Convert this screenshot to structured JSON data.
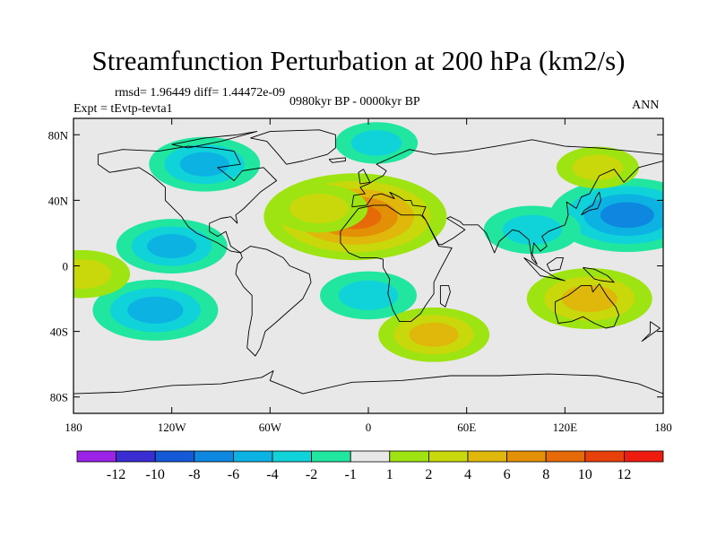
{
  "title": "Streamfunction Perturbation at 200 hPa (km2/s)",
  "rmsd_line": "rmsd= 1.96449 diff= 1.44472e-09",
  "period": "0980kyr BP - 0000kyr BP",
  "experiment": "Expt = tEvtp-tevta1",
  "season": "ANN",
  "lat_ticks": [
    "80N",
    "40N",
    "0",
    "40S",
    "80S"
  ],
  "lon_ticks": [
    "180",
    "120W",
    "60W",
    "0",
    "60E",
    "120E",
    "180"
  ],
  "colorbar": {
    "labels": [
      "-12",
      "-10",
      "-8",
      "-6",
      "-4",
      "-2",
      "-1",
      "1",
      "2",
      "4",
      "6",
      "8",
      "10",
      "12"
    ],
    "colors": [
      "#9b22e6",
      "#3a2dd2",
      "#1459d6",
      "#0d87e0",
      "#0cb2e2",
      "#10d3d9",
      "#20e6a0",
      "#e8e8e8",
      "#9ee312",
      "#c8d80a",
      "#e0b80b",
      "#e49006",
      "#e66a08",
      "#e8400a",
      "#ee1c0e"
    ]
  },
  "chart_data": {
    "type": "heatmap",
    "title": "Streamfunction Perturbation at 200 hPa (km2/s)",
    "variable": "Streamfunction Perturbation at 200 hPa",
    "units": "km2/s",
    "x_range": [
      -180,
      180
    ],
    "y_range": [
      -90,
      90
    ],
    "levels": [
      -12,
      -10,
      -8,
      -6,
      -4,
      -2,
      -1,
      1,
      2,
      4,
      6,
      8,
      10,
      12
    ],
    "features": [
      {
        "name": "north-africa-max",
        "lon": -8,
        "lat": 30,
        "value": 9
      },
      {
        "name": "atlantic-positive-band",
        "lon": -30,
        "lat": 35,
        "value": 3
      },
      {
        "name": "west-pacific-min",
        "lon": 158,
        "lat": 31,
        "value": -7
      },
      {
        "name": "asia-negative-band",
        "lon": 100,
        "lat": 22,
        "value": -3
      },
      {
        "name": "north-america-min",
        "lon": -100,
        "lat": 62,
        "value": -4
      },
      {
        "name": "east-pacific-negative",
        "lon": -120,
        "lat": 12,
        "value": -4
      },
      {
        "name": "south-pacific-min",
        "lon": -130,
        "lat": -27,
        "value": -5
      },
      {
        "name": "australia-max",
        "lon": 135,
        "lat": -20,
        "value": 5
      },
      {
        "name": "south-atlantic-negative",
        "lon": 0,
        "lat": -18,
        "value": -3
      },
      {
        "name": "east-pacific-positive",
        "lon": -175,
        "lat": -5,
        "value": 3
      },
      {
        "name": "arctic-negative",
        "lon": 5,
        "lat": 75,
        "value": -2
      },
      {
        "name": "north-pacific-positive",
        "lon": 140,
        "lat": 60,
        "value": 2
      },
      {
        "name": "southern-ocean-positive",
        "lon": 40,
        "lat": -42,
        "value": 4
      }
    ]
  }
}
